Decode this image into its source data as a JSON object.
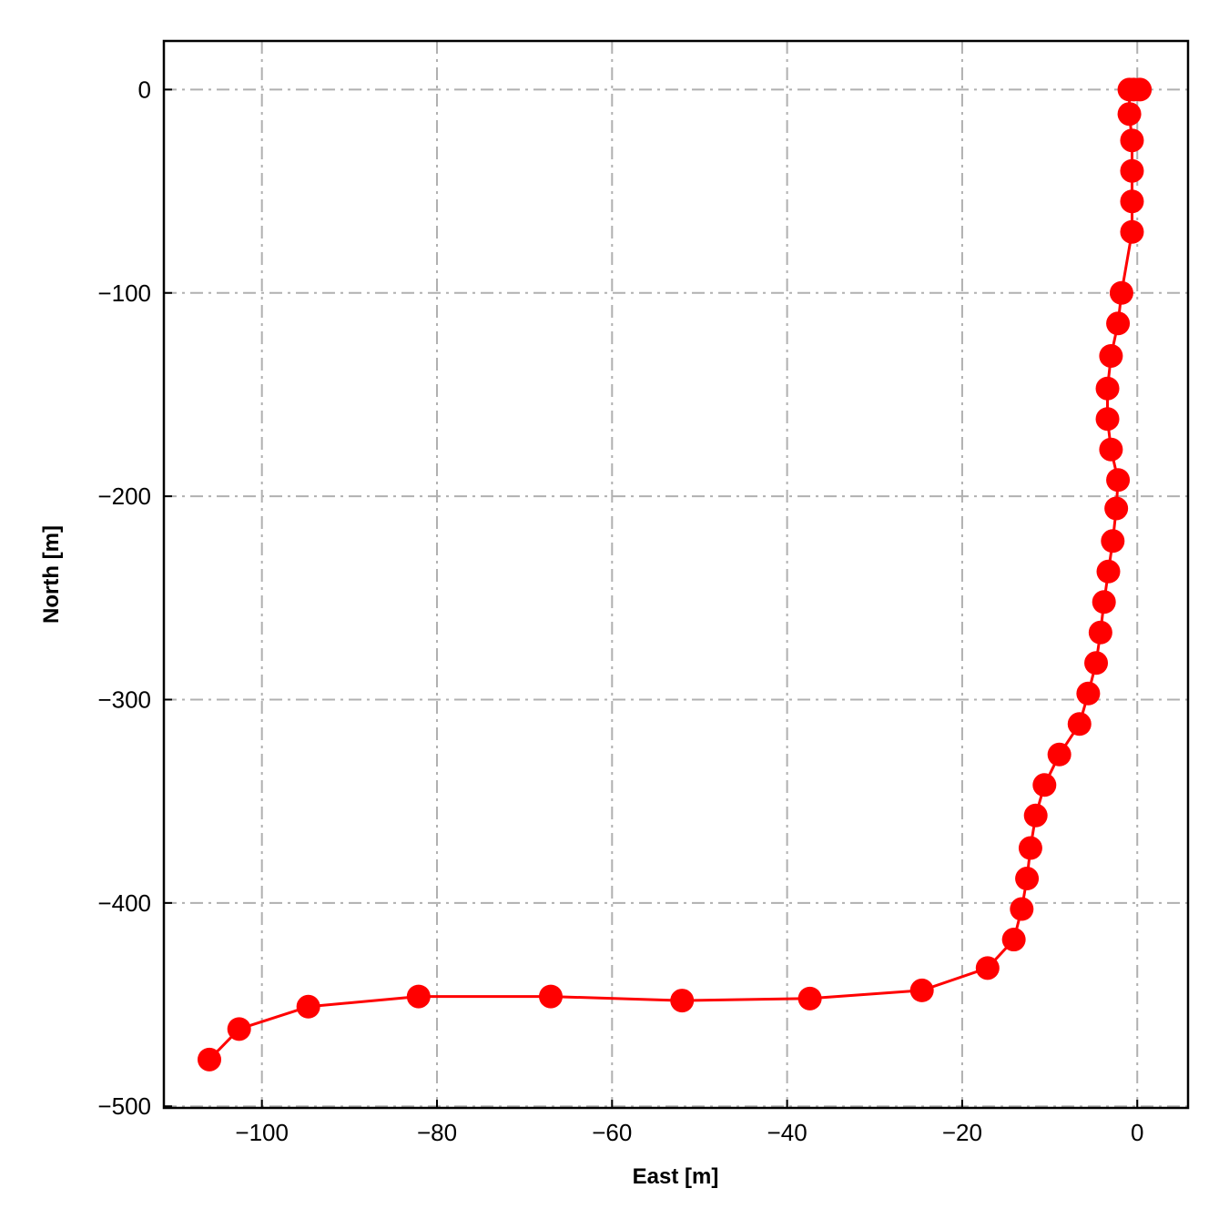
{
  "chart_data": {
    "type": "line",
    "xlabel": "East [m]",
    "ylabel": "North [m]",
    "xlim": [
      -111.2,
      5.8
    ],
    "ylim": [
      -500.8,
      23.9
    ],
    "grid": true,
    "x_ticks": [
      -100,
      -80,
      -60,
      -40,
      -20,
      0
    ],
    "y_ticks": [
      0,
      -100,
      -200,
      -300,
      -400,
      -500
    ],
    "x_tick_labels": [
      "−100",
      "−80",
      "−60",
      "−40",
      "−20",
      "0"
    ],
    "y_tick_labels": [
      "0",
      "−100",
      "−200",
      "−300",
      "−400",
      "−500"
    ],
    "series": [
      {
        "color": "#ff0000",
        "marker": "circle",
        "x": [
          0.3,
          -0.4,
          -0.9,
          -0.9,
          -0.6,
          -0.6,
          -0.6,
          -0.6,
          -1.8,
          -2.2,
          -3.0,
          -3.4,
          -3.4,
          -3.0,
          -2.2,
          -2.4,
          -2.8,
          -3.3,
          -3.8,
          -4.2,
          -4.7,
          -5.6,
          -6.6,
          -8.9,
          -10.6,
          -11.6,
          -12.2,
          -12.6,
          -13.2,
          -14.1,
          -17.1,
          -24.6,
          -37.4,
          -52.0,
          -67.0,
          -82.1,
          -94.7,
          -102.6,
          -106.0
        ],
        "y": [
          0,
          0,
          0,
          -12,
          -25,
          -40,
          -55,
          -70,
          -100,
          -115,
          -131,
          -147,
          -162,
          -177,
          -192,
          -206,
          -222,
          -237,
          -252,
          -267,
          -282,
          -297,
          -312,
          -327,
          -342,
          -357,
          -373,
          -388,
          -403,
          -418,
          -432,
          -443,
          -447,
          -448,
          -446,
          -446,
          -451,
          -462,
          -477
        ]
      }
    ]
  }
}
